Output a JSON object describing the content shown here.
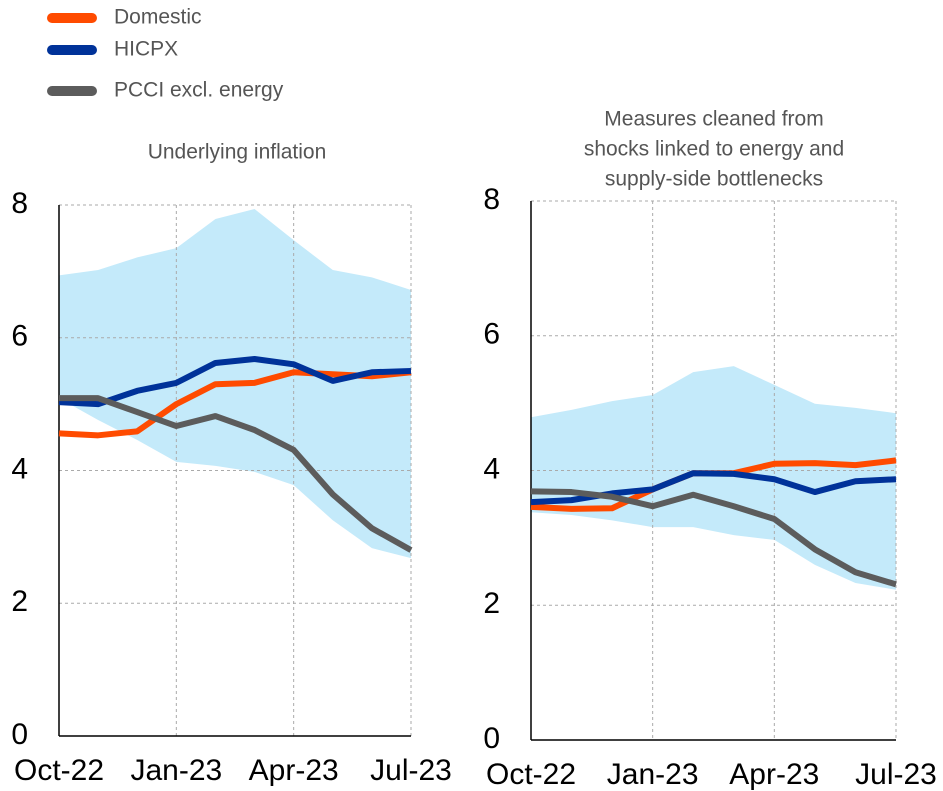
{
  "chart_data": [
    {
      "type": "line",
      "title": [
        "Underlying inflation"
      ],
      "categories": [
        "Oct-22",
        null,
        null,
        "Jan-23",
        null,
        null,
        "Apr-23",
        null,
        null,
        "Jul-23"
      ],
      "ylim": [
        0,
        8
      ],
      "yticks": [
        0,
        2,
        4,
        6,
        8
      ],
      "grid": true,
      "band": {
        "color": "#c4eafa",
        "high": [
          6.94,
          7.02,
          7.21,
          7.35,
          7.79,
          7.94,
          7.47,
          7.02,
          6.91,
          6.72
        ],
        "low": [
          5.09,
          4.76,
          4.46,
          4.13,
          4.07,
          3.98,
          3.78,
          3.25,
          2.83,
          2.68
        ]
      },
      "series": [
        {
          "name": "Domestic",
          "color": "#ff4b00",
          "values": [
            4.56,
            4.53,
            4.59,
            5.0,
            5.3,
            5.32,
            5.48,
            5.45,
            5.42,
            5.48
          ]
        },
        {
          "name": "HICPX",
          "color": "#003299",
          "values": [
            5.03,
            5.0,
            5.2,
            5.32,
            5.62,
            5.68,
            5.6,
            5.35,
            5.48,
            5.5
          ]
        },
        {
          "name": "PCCI excl. energy",
          "color": "#5c5c5c",
          "values": [
            5.09,
            5.09,
            4.88,
            4.67,
            4.82,
            4.61,
            4.31,
            3.64,
            3.13,
            2.8
          ]
        }
      ]
    },
    {
      "type": "line",
      "title": [
        "Measures cleaned from",
        "shocks linked to energy and",
        "supply-side bottlenecks"
      ],
      "categories": [
        "Oct-22",
        null,
        null,
        "Jan-23",
        null,
        null,
        "Apr-23",
        null,
        null,
        "Jul-23"
      ],
      "ylim": [
        0,
        8
      ],
      "yticks": [
        0,
        2,
        4,
        6,
        8
      ],
      "grid": true,
      "band": {
        "color": "#c4eafa",
        "high": [
          4.79,
          4.9,
          5.03,
          5.12,
          5.46,
          5.55,
          5.27,
          4.99,
          4.93,
          4.85
        ],
        "low": [
          3.38,
          3.34,
          3.26,
          3.16,
          3.16,
          3.04,
          2.97,
          2.6,
          2.33,
          2.23
        ]
      },
      "series": [
        {
          "color": "#ff4b00",
          "values": [
            3.46,
            3.43,
            3.44,
            3.72,
            3.96,
            3.96,
            4.1,
            4.11,
            4.08,
            4.15
          ]
        },
        {
          "color": "#003299",
          "values": [
            3.53,
            3.56,
            3.66,
            3.72,
            3.96,
            3.95,
            3.87,
            3.68,
            3.84,
            3.87
          ]
        },
        {
          "color": "#5c5c5c",
          "values": [
            3.69,
            3.68,
            3.61,
            3.47,
            3.64,
            3.47,
            3.28,
            2.83,
            2.49,
            2.31
          ]
        }
      ]
    }
  ]
}
